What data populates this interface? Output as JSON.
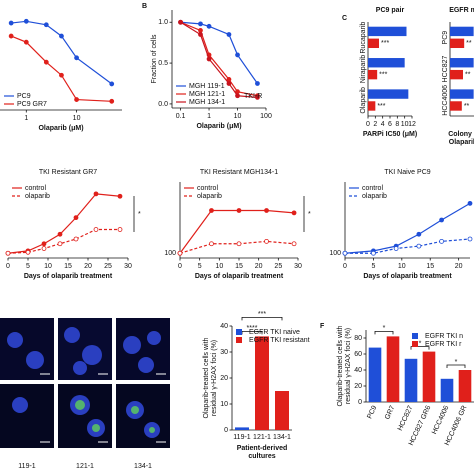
{
  "chart_data": [
    {
      "type": "line",
      "xlabel": "Olaparib (μM)",
      "log_x": true,
      "xlim": [
        0.3,
        80
      ],
      "xticks": [
        1,
        10
      ],
      "ylim": [
        0,
        1.15
      ],
      "legend": "lower left",
      "x": [
        0.5,
        1,
        2.5,
        5,
        10,
        50
      ],
      "series": [
        {
          "name": "PC9",
          "color": "#1f4fd8",
          "values": [
            1.0,
            1.02,
            0.98,
            0.85,
            0.6,
            0.3
          ]
        },
        {
          "name": "PC9 GR7",
          "color": "#e0201b",
          "values": [
            0.85,
            0.78,
            0.55,
            0.4,
            0.12,
            0.1
          ]
        }
      ]
    },
    {
      "type": "line",
      "panel": "B",
      "ylabel": "Fraction of cells",
      "xlabel": "Olaparib (μM)",
      "log_x": true,
      "xlim": [
        0.05,
        100
      ],
      "xticks": [
        0.1,
        1,
        10,
        100
      ],
      "ylim": [
        -0.05,
        1.15
      ],
      "yticks": [
        {
          "value": 0,
          "label": "0.0"
        },
        {
          "value": 0.5,
          "label": "0.5"
        },
        {
          "value": 1,
          "label": "1.0"
        }
      ],
      "legend": "lower left",
      "annotation": "TKI-R",
      "x": [
        0.1,
        0.5,
        1,
        5,
        10,
        50
      ],
      "series": [
        {
          "name": "MGH 119-1",
          "color": "#1f4fd8",
          "values": [
            1.0,
            0.98,
            0.95,
            0.85,
            0.6,
            0.25
          ]
        },
        {
          "name": "MGH 121-1",
          "color": "#e0201b",
          "values": [
            1.0,
            0.9,
            0.6,
            0.3,
            0.15,
            0.1
          ]
        },
        {
          "name": "MGH 134-1",
          "color": "#c8141e",
          "values": [
            1.0,
            0.85,
            0.55,
            0.25,
            0.1,
            0.08
          ]
        }
      ]
    },
    {
      "type": "hbar",
      "panel": "C",
      "title": "PC9 pair",
      "xlabel": "PARPi IC50 (μM)",
      "xlim": [
        0,
        12
      ],
      "xticks": [
        0,
        2,
        4,
        6,
        8,
        10,
        12
      ],
      "categories": [
        "Rucaparib",
        "Niraparib",
        "Olaparib"
      ],
      "significance": [
        "***",
        "***",
        "***"
      ],
      "series": [
        {
          "color": "#1f4fd8",
          "values": [
            10.5,
            10,
            11
          ]
        },
        {
          "color": "#e0201b",
          "values": [
            3,
            2.5,
            2
          ]
        }
      ]
    },
    {
      "type": "hbar",
      "title": "EGFR m",
      "xlabel": [
        "Colony s",
        "Olaparib"
      ],
      "xlim": [
        0,
        1.1
      ],
      "categories": [
        "PC9",
        "HCC827",
        "HCC4006"
      ],
      "significance": [
        "**",
        "**",
        "**"
      ],
      "series": [
        {
          "color": "#1f4fd8",
          "values": [
            1,
            1,
            1
          ]
        },
        {
          "color": "#e0201b",
          "values": [
            0.6,
            0.55,
            0.5
          ]
        }
      ]
    },
    {
      "type": "line",
      "title": "TKI Resistant GR7",
      "xlabel": "Days of olaparib treatment",
      "xlim": [
        0,
        30
      ],
      "xticks": [
        0,
        5,
        10,
        15,
        20,
        25,
        30
      ],
      "ylim": [
        90,
        250
      ],
      "legend": "upper left",
      "significance": "*",
      "x": [
        0,
        5,
        9,
        13,
        17,
        22,
        28
      ],
      "series": [
        {
          "name": "control",
          "color": "#e0201b",
          "values": [
            100,
            105,
            120,
            140,
            175,
            225,
            220
          ]
        },
        {
          "name": "olaparib",
          "color": "#e0201b",
          "dashed": true,
          "values": [
            100,
            102,
            110,
            120,
            130,
            150,
            150
          ]
        }
      ]
    },
    {
      "type": "line",
      "title": "TKI Resistant MGH134-1",
      "xlabel": "Days of olaparib treatment",
      "xlim": [
        0,
        30
      ],
      "xticks": [
        0,
        5,
        10,
        15,
        20,
        25,
        30
      ],
      "ylim": [
        90,
        250
      ],
      "yticks": [
        100
      ],
      "legend": "upper left",
      "significance": "*",
      "x": [
        0,
        8,
        15,
        22,
        29
      ],
      "series": [
        {
          "name": "control",
          "color": "#e0201b",
          "values": [
            100,
            190,
            190,
            190,
            185
          ]
        },
        {
          "name": "olaparib",
          "color": "#e0201b",
          "dashed": true,
          "values": [
            100,
            120,
            120,
            125,
            120
          ]
        }
      ]
    },
    {
      "type": "line",
      "title": "TKI Naive PC9",
      "xlabel": "Days of olaparib treatment",
      "xlim": [
        0,
        22
      ],
      "xticks": [
        0,
        5,
        10,
        15,
        20
      ],
      "ylim": [
        90,
        250
      ],
      "yticks": [
        100
      ],
      "legend": "upper left",
      "x": [
        0,
        5,
        9,
        13,
        17,
        22
      ],
      "series": [
        {
          "name": "control",
          "color": "#1f4fd8",
          "values": [
            100,
            105,
            115,
            140,
            170,
            205
          ]
        },
        {
          "name": "olaparib",
          "color": "#1f4fd8",
          "dashed": true,
          "values": [
            100,
            100,
            110,
            115,
            125,
            130
          ]
        }
      ]
    },
    {
      "type": "bar",
      "ylabel": [
        "Olaparib-treated cells with",
        "residual γ-H2AX foci (%)"
      ],
      "xlabel": [
        "Patient-derived",
        "cultures"
      ],
      "image_labels": [
        "119-1",
        "121-1",
        "134-1"
      ],
      "ylim": [
        0,
        40
      ],
      "yticks": [
        0,
        10,
        20,
        30,
        40
      ],
      "legend": "upper left",
      "significance": [
        "****",
        "***"
      ],
      "categories": [
        "119-1",
        "121-1",
        "134-1"
      ],
      "series": [
        {
          "name": "EGFR TKI naive",
          "color": "#1f4fd8",
          "values": [
            1,
            null,
            null
          ]
        },
        {
          "name": "EGFR TKI resistant",
          "color": "#e0201b",
          "values": [
            null,
            36,
            15
          ]
        }
      ]
    },
    {
      "type": "bar",
      "panel": "F",
      "ylabel": [
        "Olaparib-treated cells with",
        "residual γ-H2AX foci (%)"
      ],
      "ylim": [
        0,
        90
      ],
      "yticks": [
        0,
        20,
        40,
        60,
        80
      ],
      "legend": "upper right",
      "significance": [
        "*",
        "*",
        "*"
      ],
      "categories": [
        "PC9",
        "GR7",
        "HCC827",
        "HCC827 GR6",
        "HCC4006",
        "HCC4006 GR"
      ],
      "series": [
        {
          "name": "EGFR TKI n",
          "color": "#1f4fd8",
          "values": [
            68,
            null,
            54,
            null,
            29,
            null
          ]
        },
        {
          "name": "EGFR TKI r",
          "color": "#e0201b",
          "values": [
            null,
            82,
            null,
            63,
            null,
            40
          ]
        }
      ]
    }
  ]
}
